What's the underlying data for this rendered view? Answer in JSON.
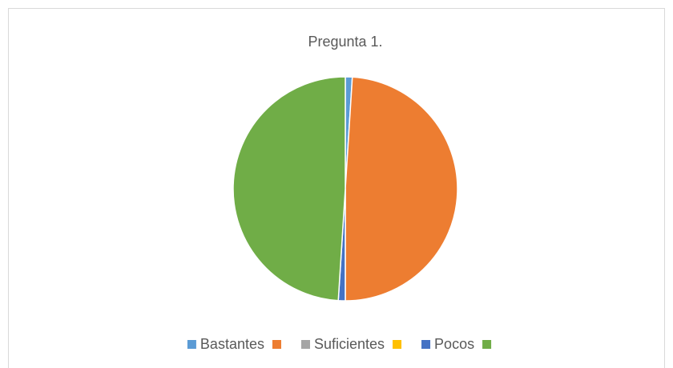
{
  "chart_data": {
    "type": "pie",
    "title": "Pregunta 1.",
    "categories": [
      "Bastantes",
      null,
      "Suficientes",
      null,
      "Pocos",
      null
    ],
    "values": [
      1,
      49,
      0,
      0,
      1,
      49
    ],
    "colors": [
      "#5b9bd5",
      "#ed7d31",
      "#a5a5a5",
      "#ffc000",
      "#4472c4",
      "#70ad47"
    ],
    "legend": "bottom"
  }
}
